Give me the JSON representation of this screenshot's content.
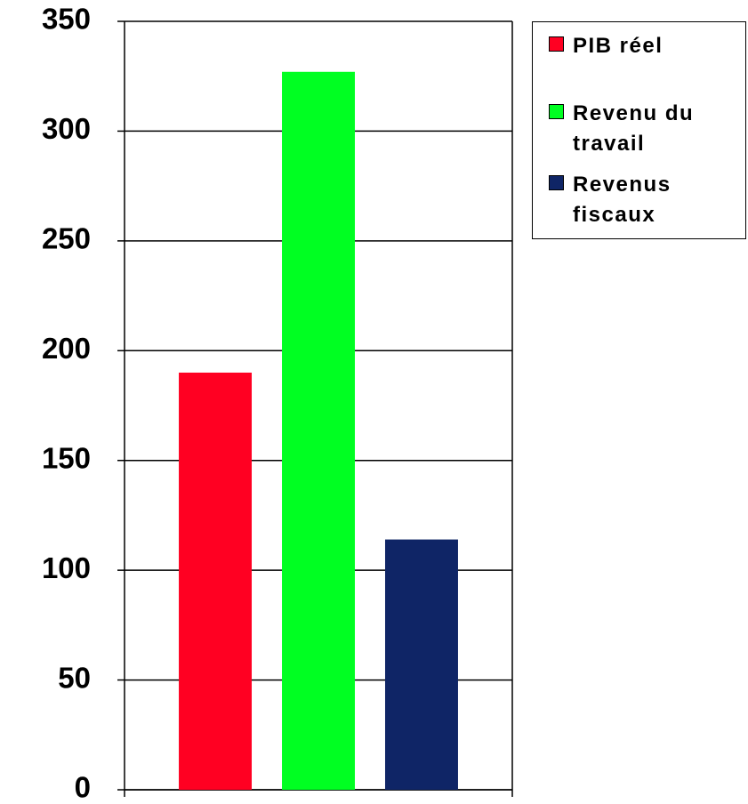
{
  "chart_data": {
    "type": "bar",
    "categories": [
      null
    ],
    "series": [
      {
        "name": "PIB réel",
        "color": "#ff0022",
        "values": [
          190
        ]
      },
      {
        "name": "Revenu du travail",
        "color": "#00ff22",
        "values": [
          327
        ]
      },
      {
        "name": "Revenus fiscaux",
        "color": "#0f2566",
        "values": [
          114
        ]
      }
    ],
    "ylim": [
      0,
      350
    ],
    "yticks": [
      0,
      50,
      100,
      150,
      200,
      250,
      300,
      350
    ],
    "grid": true,
    "legend": "right"
  }
}
